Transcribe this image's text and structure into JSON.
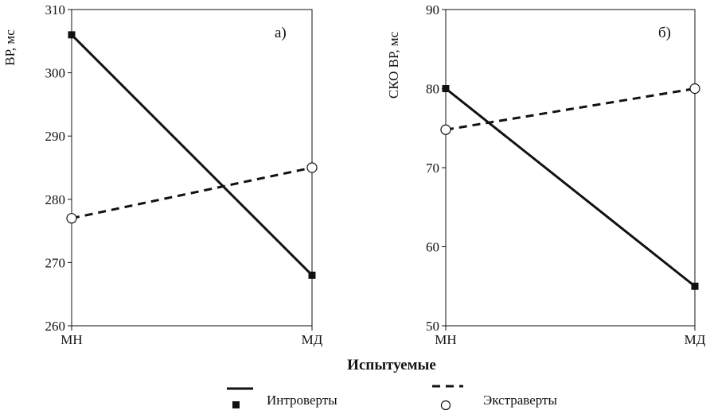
{
  "x_axis_title": "Испытуемые",
  "legend": [
    {
      "label": "Интроверты",
      "line": "solid",
      "marker": "square"
    },
    {
      "label": "Экстраверты",
      "line": "dashed",
      "marker": "circle"
    }
  ],
  "chart_data": [
    {
      "type": "line",
      "panel_label": "а)",
      "ylabel": "ВР, мс",
      "categories": [
        "МН",
        "МД"
      ],
      "ylim": [
        260,
        310
      ],
      "yticks": [
        260,
        270,
        280,
        290,
        300,
        310
      ],
      "series": [
        {
          "name": "Интроверты",
          "values": [
            306,
            268
          ]
        },
        {
          "name": "Экстраверты",
          "values": [
            277,
            285
          ]
        }
      ]
    },
    {
      "type": "line",
      "panel_label": "б)",
      "ylabel": "СКО ВР, мс",
      "categories": [
        "МН",
        "МД"
      ],
      "ylim": [
        50,
        90
      ],
      "yticks": [
        50,
        60,
        70,
        80,
        90
      ],
      "series": [
        {
          "name": "Интроверты",
          "values": [
            80,
            55
          ]
        },
        {
          "name": "Экстраверты",
          "values": [
            74.8,
            80
          ]
        }
      ]
    }
  ]
}
